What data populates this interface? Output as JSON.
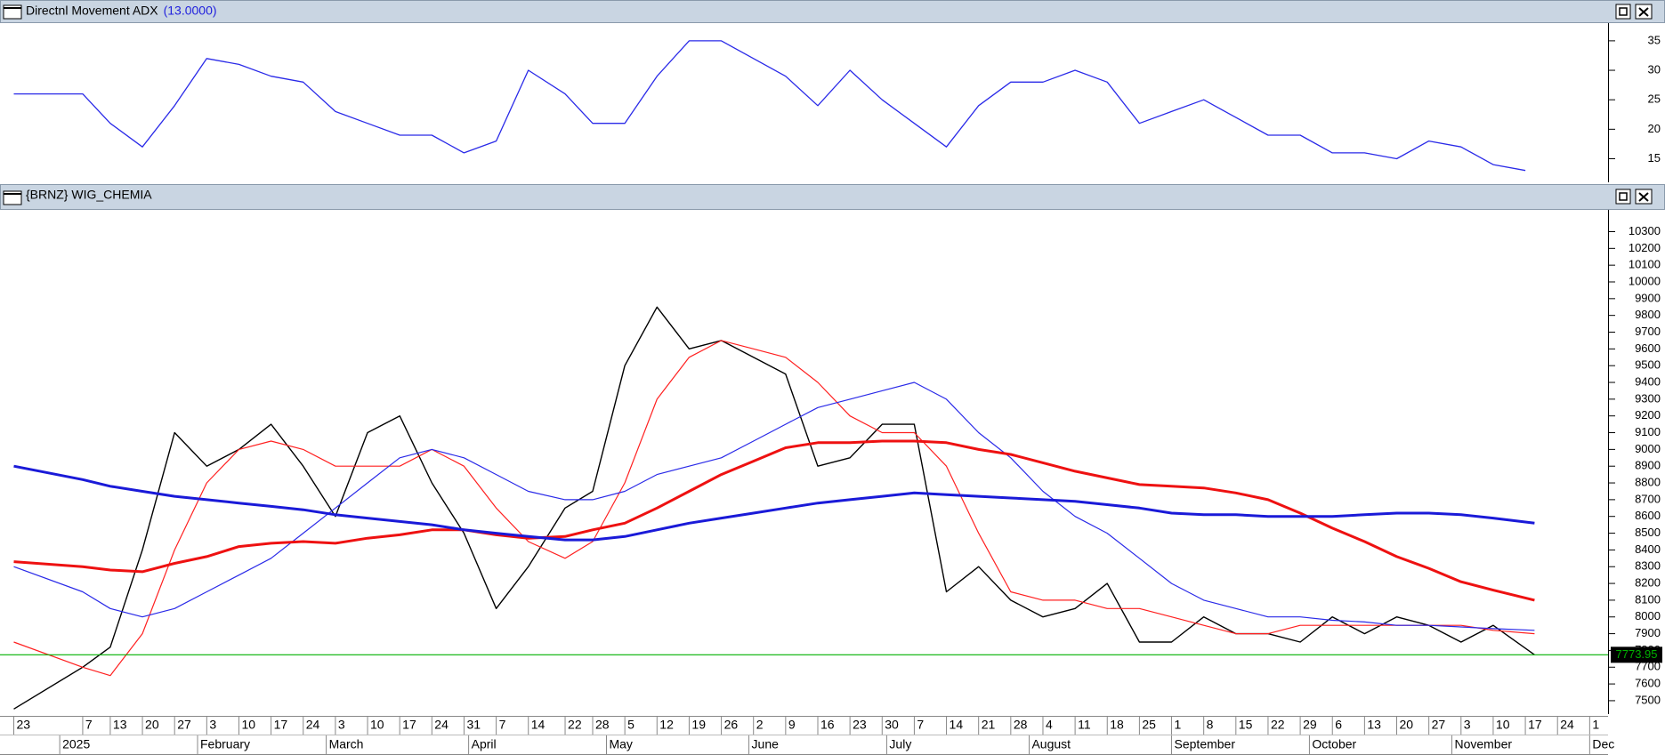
{
  "chart_data": [
    {
      "type": "line",
      "title": "Directnl Movement ADX",
      "parameter": "(13.0000)",
      "x": [
        "2024-12-23",
        "2025-01-07",
        "2025-01-13",
        "2025-01-20",
        "2025-01-27",
        "2025-02-03",
        "2025-02-10",
        "2025-02-17",
        "2025-02-24",
        "2025-03-03",
        "2025-03-10",
        "2025-03-17",
        "2025-03-24",
        "2025-03-31",
        "2025-04-07",
        "2025-04-14",
        "2025-04-22",
        "2025-04-28",
        "2025-05-05",
        "2025-05-12",
        "2025-05-19",
        "2025-05-26",
        "2025-06-02",
        "2025-06-09",
        "2025-06-16",
        "2025-06-23",
        "2025-06-30",
        "2025-07-07",
        "2025-07-14",
        "2025-07-21",
        "2025-07-28",
        "2025-08-04",
        "2025-08-11",
        "2025-08-18",
        "2025-08-25",
        "2025-09-01",
        "2025-09-08",
        "2025-09-15",
        "2025-09-22",
        "2025-09-29",
        "2025-10-06",
        "2025-10-13",
        "2025-10-20",
        "2025-10-27",
        "2025-11-03",
        "2025-11-10",
        "2025-11-17"
      ],
      "xlim": [
        "2024-12-20",
        "2025-12-05"
      ],
      "series": [
        {
          "color": "#2a2ae8",
          "values": [
            26,
            26,
            21,
            17,
            24,
            32,
            31,
            29,
            28,
            23,
            21,
            19,
            19,
            16,
            18,
            30,
            26,
            21,
            21,
            29,
            35,
            35,
            32,
            29,
            24,
            30,
            25,
            21,
            17,
            24,
            28,
            28,
            30,
            28,
            21,
            23,
            25,
            22,
            19,
            19,
            16,
            16,
            15,
            18,
            17,
            14,
            13
          ]
        }
      ],
      "ylim": [
        11,
        38
      ],
      "yticks": [
        15,
        20,
        25,
        30,
        35
      ]
    },
    {
      "type": "line",
      "title": "{BRNZ} WIG_CHEMIA",
      "x": [
        "2024-12-23",
        "2025-01-07",
        "2025-01-13",
        "2025-01-20",
        "2025-01-27",
        "2025-02-03",
        "2025-02-10",
        "2025-02-17",
        "2025-02-24",
        "2025-03-03",
        "2025-03-10",
        "2025-03-17",
        "2025-03-24",
        "2025-03-31",
        "2025-04-07",
        "2025-04-14",
        "2025-04-22",
        "2025-04-28",
        "2025-05-05",
        "2025-05-12",
        "2025-05-19",
        "2025-05-26",
        "2025-06-02",
        "2025-06-09",
        "2025-06-16",
        "2025-06-23",
        "2025-06-30",
        "2025-07-07",
        "2025-07-14",
        "2025-07-21",
        "2025-07-28",
        "2025-08-04",
        "2025-08-11",
        "2025-08-18",
        "2025-08-25",
        "2025-09-01",
        "2025-09-08",
        "2025-09-15",
        "2025-09-22",
        "2025-09-29",
        "2025-10-06",
        "2025-10-13",
        "2025-10-20",
        "2025-10-27",
        "2025-11-03",
        "2025-11-10",
        "2025-11-19"
      ],
      "xlim": [
        "2024-12-20",
        "2025-12-05"
      ],
      "series": [
        {
          "color": "#000000",
          "width": 1.4,
          "values": [
            7450,
            7700,
            7820,
            8400,
            9100,
            8900,
            9000,
            9150,
            8900,
            8600,
            9100,
            9200,
            8800,
            8500,
            8050,
            8300,
            8650,
            8750,
            9500,
            9850,
            9600,
            9650,
            9550,
            9450,
            8900,
            8950,
            9150,
            9150,
            8150,
            8300,
            8100,
            8000,
            8050,
            8200,
            7850,
            7850,
            8000,
            7900,
            7900,
            7850,
            8000,
            7900,
            8000,
            7950,
            7850,
            7950,
            7773.95
          ]
        },
        {
          "color": "#ff2020",
          "width": 1.2,
          "values": [
            7850,
            7700,
            7650,
            7900,
            8400,
            8800,
            9000,
            9050,
            9000,
            8900,
            8900,
            8900,
            9000,
            8900,
            8650,
            8450,
            8350,
            8450,
            8800,
            9300,
            9550,
            9650,
            9600,
            9550,
            9400,
            9200,
            9100,
            9100,
            8900,
            8500,
            8150,
            8100,
            8100,
            8050,
            8050,
            8000,
            7950,
            7900,
            7900,
            7950,
            7950,
            7950,
            7950,
            7950,
            7950,
            7920,
            7900
          ]
        },
        {
          "color": "#2a2ae8",
          "width": 1.2,
          "values": [
            8300,
            8150,
            8050,
            8000,
            8050,
            8150,
            8250,
            8350,
            8500,
            8650,
            8800,
            8950,
            9000,
            8950,
            8850,
            8750,
            8700,
            8700,
            8750,
            8850,
            8900,
            8950,
            9050,
            9150,
            9250,
            9300,
            9350,
            9400,
            9300,
            9100,
            8950,
            8750,
            8600,
            8500,
            8350,
            8200,
            8100,
            8050,
            8000,
            8000,
            7980,
            7970,
            7950,
            7950,
            7940,
            7930,
            7920
          ]
        },
        {
          "color": "#ee1111",
          "width": 3,
          "values": [
            8330,
            8300,
            8280,
            8270,
            8320,
            8360,
            8420,
            8440,
            8450,
            8440,
            8470,
            8490,
            8520,
            8520,
            8490,
            8470,
            8480,
            8520,
            8560,
            8650,
            8750,
            8850,
            8930,
            9010,
            9040,
            9040,
            9050,
            9050,
            9040,
            9000,
            8970,
            8920,
            8870,
            8830,
            8790,
            8780,
            8770,
            8740,
            8700,
            8620,
            8530,
            8450,
            8360,
            8290,
            8210,
            8160,
            8100
          ]
        },
        {
          "color": "#1a1ad8",
          "width": 3,
          "values": [
            8900,
            8820,
            8780,
            8750,
            8720,
            8700,
            8680,
            8660,
            8640,
            8610,
            8590,
            8570,
            8550,
            8520,
            8500,
            8480,
            8460,
            8460,
            8480,
            8520,
            8560,
            8590,
            8620,
            8650,
            8680,
            8700,
            8720,
            8740,
            8730,
            8720,
            8710,
            8700,
            8690,
            8670,
            8650,
            8620,
            8610,
            8610,
            8600,
            8600,
            8600,
            8610,
            8620,
            8620,
            8610,
            8590,
            8560
          ]
        }
      ],
      "last_value_color": "#00b000",
      "ylim": [
        7420,
        10430
      ],
      "yticks": [
        7500,
        7600,
        7700,
        7800,
        7900,
        8000,
        8100,
        8200,
        8300,
        8400,
        8500,
        8600,
        8700,
        8800,
        8900,
        9000,
        9100,
        9200,
        9300,
        9400,
        9500,
        9600,
        9700,
        9800,
        9900,
        10000,
        10100,
        10200,
        10300
      ],
      "xticks": [
        {
          "value": "2024-12-23",
          "label": "23"
        },
        {
          "value": "2025-01-07",
          "label": "7"
        },
        {
          "value": "2025-01-13",
          "label": "13"
        },
        {
          "value": "2025-01-20",
          "label": "20"
        },
        {
          "value": "2025-01-27",
          "label": "27"
        },
        {
          "value": "2025-02-03",
          "label": "3"
        },
        {
          "value": "2025-02-10",
          "label": "10"
        },
        {
          "value": "2025-02-17",
          "label": "17"
        },
        {
          "value": "2025-02-24",
          "label": "24"
        },
        {
          "value": "2025-03-03",
          "label": "3"
        },
        {
          "value": "2025-03-10",
          "label": "10"
        },
        {
          "value": "2025-03-17",
          "label": "17"
        },
        {
          "value": "2025-03-24",
          "label": "24"
        },
        {
          "value": "2025-03-31",
          "label": "31"
        },
        {
          "value": "2025-04-07",
          "label": "7"
        },
        {
          "value": "2025-04-14",
          "label": "14"
        },
        {
          "value": "2025-04-22",
          "label": "22"
        },
        {
          "value": "2025-04-28",
          "label": "28"
        },
        {
          "value": "2025-05-05",
          "label": "5"
        },
        {
          "value": "2025-05-12",
          "label": "12"
        },
        {
          "value": "2025-05-19",
          "label": "19"
        },
        {
          "value": "2025-05-26",
          "label": "26"
        },
        {
          "value": "2025-06-02",
          "label": "2"
        },
        {
          "value": "2025-06-09",
          "label": "9"
        },
        {
          "value": "2025-06-16",
          "label": "16"
        },
        {
          "value": "2025-06-23",
          "label": "23"
        },
        {
          "value": "2025-06-30",
          "label": "30"
        },
        {
          "value": "2025-07-07",
          "label": "7"
        },
        {
          "value": "2025-07-14",
          "label": "14"
        },
        {
          "value": "2025-07-21",
          "label": "21"
        },
        {
          "value": "2025-07-28",
          "label": "28"
        },
        {
          "value": "2025-08-04",
          "label": "4"
        },
        {
          "value": "2025-08-11",
          "label": "11"
        },
        {
          "value": "2025-08-18",
          "label": "18"
        },
        {
          "value": "2025-08-25",
          "label": "25"
        },
        {
          "value": "2025-09-01",
          "label": "1"
        },
        {
          "value": "2025-09-08",
          "label": "8"
        },
        {
          "value": "2025-09-15",
          "label": "15"
        },
        {
          "value": "2025-09-22",
          "label": "22"
        },
        {
          "value": "2025-09-29",
          "label": "29"
        },
        {
          "value": "2025-10-06",
          "label": "6"
        },
        {
          "value": "2025-10-13",
          "label": "13"
        },
        {
          "value": "2025-10-20",
          "label": "20"
        },
        {
          "value": "2025-10-27",
          "label": "27"
        },
        {
          "value": "2025-11-03",
          "label": "3"
        },
        {
          "value": "2025-11-10",
          "label": "10"
        },
        {
          "value": "2025-11-17",
          "label": "17"
        },
        {
          "value": "2025-11-24",
          "label": "24"
        },
        {
          "value": "2025-12-01",
          "label": "1"
        }
      ],
      "month_ticks": [
        {
          "value": "2025-01-02",
          "label": "2025"
        },
        {
          "value": "2025-02-01",
          "label": "February"
        },
        {
          "value": "2025-03-01",
          "label": "March"
        },
        {
          "value": "2025-04-01",
          "label": "April"
        },
        {
          "value": "2025-05-01",
          "label": "May"
        },
        {
          "value": "2025-06-01",
          "label": "June"
        },
        {
          "value": "2025-07-01",
          "label": "July"
        },
        {
          "value": "2025-08-01",
          "label": "August"
        },
        {
          "value": "2025-09-01",
          "label": "September"
        },
        {
          "value": "2025-10-01",
          "label": "October"
        },
        {
          "value": "2025-11-01",
          "label": "November"
        },
        {
          "value": "2025-12-01",
          "label": "Dec"
        }
      ]
    }
  ]
}
